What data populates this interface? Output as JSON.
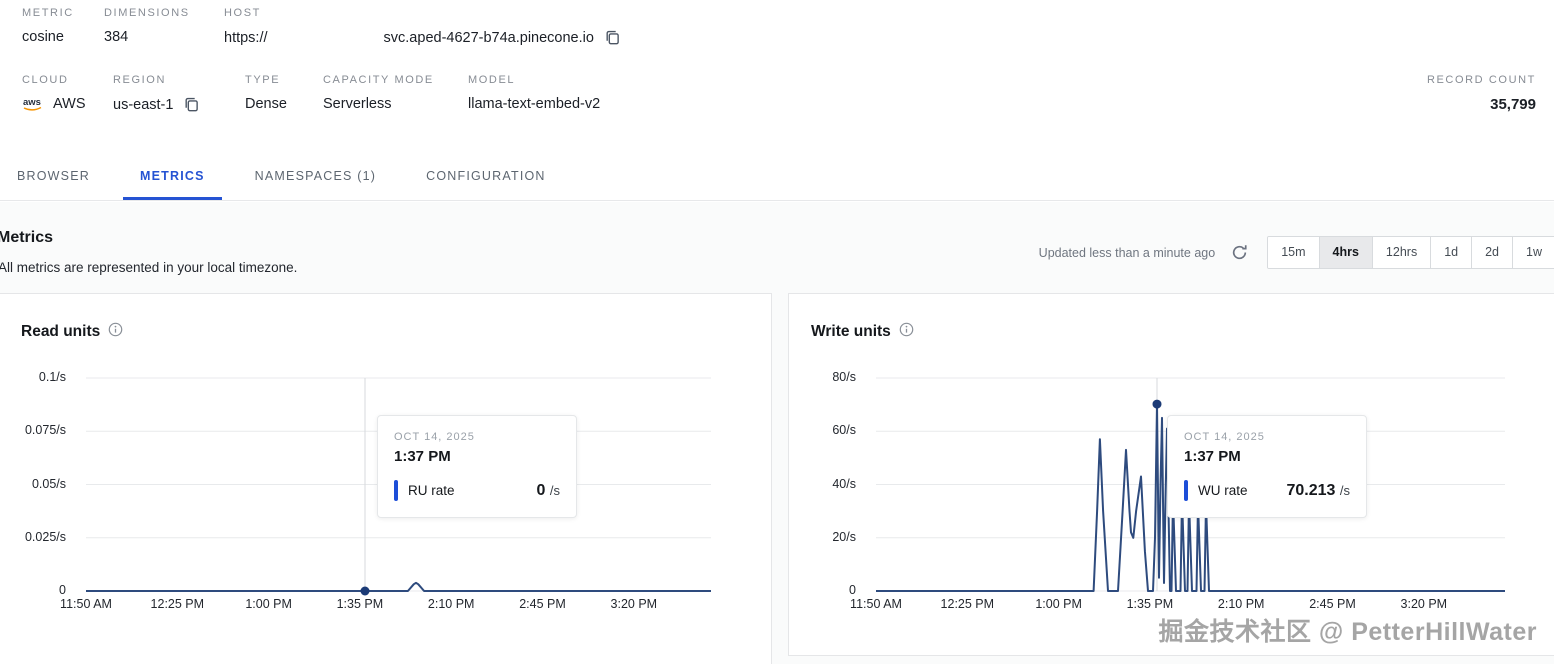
{
  "header": {
    "metric": {
      "label": "METRIC",
      "value": "cosine"
    },
    "dimensions": {
      "label": "DIMENSIONS",
      "value": "384"
    },
    "host": {
      "label": "HOST",
      "protocol": "https://",
      "domain": "svc.aped-4627-b74a.pinecone.io",
      "copy_icon": "copy-icon"
    },
    "cloud": {
      "label": "CLOUD",
      "value": "AWS",
      "logo_icon": "aws-logo"
    },
    "region": {
      "label": "REGION",
      "value": "us-east-1",
      "copy_icon": "copy-icon"
    },
    "type": {
      "label": "TYPE",
      "value": "Dense"
    },
    "capacity_mode": {
      "label": "CAPACITY MODE",
      "value": "Serverless"
    },
    "model": {
      "label": "MODEL",
      "value": "llama-text-embed-v2"
    },
    "record_count": {
      "label": "RECORD COUNT",
      "value": "35,799"
    }
  },
  "tabs": [
    {
      "label": "BROWSER",
      "active": false
    },
    {
      "label": "METRICS",
      "active": true
    },
    {
      "label": "NAMESPACES (1)",
      "active": false
    },
    {
      "label": "CONFIGURATION",
      "active": false
    }
  ],
  "metrics_section": {
    "title": "Metrics",
    "subtitle": "All metrics are represented in your local timezone.",
    "updated": "Updated less than a minute ago",
    "refresh_icon": "refresh-icon",
    "ranges": [
      {
        "label": "15m",
        "selected": false
      },
      {
        "label": "4hrs",
        "selected": true
      },
      {
        "label": "12hrs",
        "selected": false
      },
      {
        "label": "1d",
        "selected": false
      },
      {
        "label": "2d",
        "selected": false
      },
      {
        "label": "1w",
        "selected": false
      }
    ]
  },
  "chart_data": [
    {
      "type": "line",
      "title": "Read units",
      "info_icon": "info-icon",
      "ylim": [
        0,
        0.1
      ],
      "grid": true,
      "legend_position": "none",
      "yticks": [
        {
          "value": 0.1,
          "label": "0.1/s"
        },
        {
          "value": 0.075,
          "label": "0.075/s"
        },
        {
          "value": 0.05,
          "label": "0.05/s"
        },
        {
          "value": 0.025,
          "label": "0.025/s"
        },
        {
          "value": 0,
          "label": "0"
        }
      ],
      "xticks": [
        "11:50 AM",
        "12:25 PM",
        "1:00 PM",
        "1:35 PM",
        "2:10 PM",
        "2:45 PM",
        "3:20 PM"
      ],
      "series": [
        {
          "name": "RU rate",
          "color": "#2e4b7e",
          "points": [
            [
              0,
              0
            ],
            [
              0.515,
              0
            ],
            [
              0.5245,
              0.0032
            ],
            [
              0.528,
              0.0038
            ],
            [
              0.5315,
              0.0032
            ],
            [
              0.541,
              0
            ],
            [
              1,
              0
            ]
          ]
        }
      ],
      "hover": {
        "x_frac": 0.4464,
        "value": 0
      },
      "tooltip": {
        "date": "OCT 14, 2025",
        "time": "1:37 PM",
        "series": "RU rate",
        "value": "0",
        "unit": "/s"
      }
    },
    {
      "type": "line",
      "title": "Write units",
      "info_icon": "info-icon",
      "ylim": [
        0,
        80
      ],
      "grid": true,
      "legend_position": "none",
      "yticks": [
        {
          "value": 80,
          "label": "80/s"
        },
        {
          "value": 60,
          "label": "60/s"
        },
        {
          "value": 40,
          "label": "40/s"
        },
        {
          "value": 20,
          "label": "20/s"
        },
        {
          "value": 0,
          "label": "0"
        }
      ],
      "xticks": [
        "11:50 AM",
        "12:25 PM",
        "1:00 PM",
        "1:35 PM",
        "2:10 PM",
        "2:45 PM",
        "3:20 PM"
      ],
      "series": [
        {
          "name": "WU rate",
          "color": "#2e4b7e",
          "points": [
            [
              0,
              0
            ],
            [
              0.334,
              0
            ],
            [
              0.346,
              0
            ],
            [
              0.3515,
              30
            ],
            [
              0.356,
              57
            ],
            [
              0.361,
              30
            ],
            [
              0.3688,
              0
            ],
            [
              0.3847,
              0
            ],
            [
              0.392,
              30
            ],
            [
              0.3975,
              53
            ],
            [
              0.403,
              30
            ],
            [
              0.4054,
              22
            ],
            [
              0.409,
              20
            ],
            [
              0.4135,
              30
            ],
            [
              0.4213,
              43
            ],
            [
              0.4275,
              15
            ],
            [
              0.4324,
              0
            ],
            [
              0.4404,
              0
            ],
            [
              0.4435,
              20
            ],
            [
              0.4467,
              70.213
            ],
            [
              0.4499,
              5
            ],
            [
              0.4523,
              40
            ],
            [
              0.4547,
              65
            ],
            [
              0.4579,
              3
            ],
            [
              0.4602,
              35
            ],
            [
              0.4626,
              61
            ],
            [
              0.4674,
              0
            ],
            [
              0.4698,
              0
            ],
            [
              0.4722,
              35
            ],
            [
              0.477,
              0
            ],
            [
              0.4841,
              0
            ],
            [
              0.4865,
              35
            ],
            [
              0.4913,
              0
            ],
            [
              0.4952,
              0
            ],
            [
              0.4976,
              34
            ],
            [
              0.5024,
              0
            ],
            [
              0.5096,
              0
            ],
            [
              0.512,
              33
            ],
            [
              0.5167,
              0
            ],
            [
              0.5223,
              0
            ],
            [
              0.5247,
              33
            ],
            [
              0.5294,
              0
            ],
            [
              1,
              0
            ]
          ]
        }
      ],
      "hover": {
        "x_frac": 0.4467,
        "value": 70.213
      },
      "tooltip": {
        "date": "OCT 14, 2025",
        "time": "1:37 PM",
        "series": "WU rate",
        "value": "70.213",
        "unit": "/s"
      }
    }
  ],
  "watermark": "掘金技术社区 @ PetterHillWater"
}
